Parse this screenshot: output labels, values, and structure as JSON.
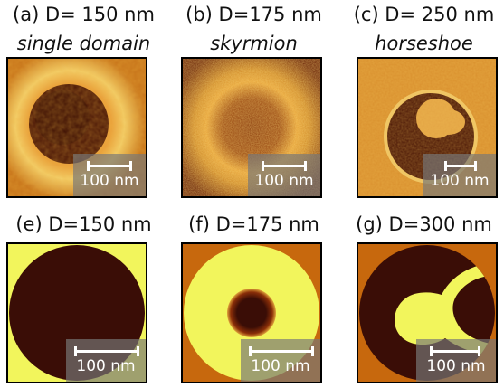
{
  "top": [
    {
      "id": "a",
      "title": "(a) D= 150 nm",
      "subtitle": "single domain",
      "scale": "100 nm"
    },
    {
      "id": "b",
      "title": "(b) D=175 nm",
      "subtitle": "skyrmion",
      "scale": "100 nm"
    },
    {
      "id": "c",
      "title": "(c) D= 250 nm",
      "subtitle": "horseshoe",
      "scale": "100 nm"
    }
  ],
  "bottom": [
    {
      "id": "e",
      "title": "(e) D=150 nm",
      "scale": "100 nm"
    },
    {
      "id": "f",
      "title": "(f) D=175 nm",
      "scale": "100 nm"
    },
    {
      "id": "g",
      "title": "(g) D=300 nm",
      "scale": "100 nm"
    }
  ],
  "colors": {
    "dark": "#3a0d06",
    "yellow": "#f2f55c",
    "orange": "#c7680d",
    "bright": "#e9a03b"
  }
}
